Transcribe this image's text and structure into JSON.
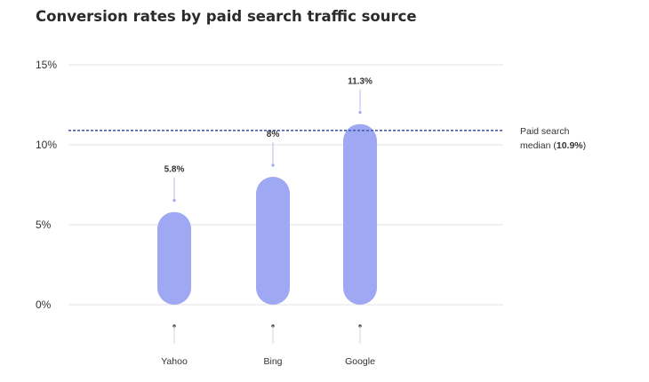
{
  "chart_data": {
    "type": "bar",
    "title": "Conversion rates by paid search traffic source",
    "categories": [
      "Yahoo",
      "Bing",
      "Google"
    ],
    "values": [
      5.8,
      8,
      11.3
    ],
    "value_labels": [
      "5.8%",
      "8%",
      "11.3%"
    ],
    "yticks": [
      "0%",
      "5%",
      "10%",
      "15%"
    ],
    "ytick_values": [
      0,
      5,
      10,
      15
    ],
    "ylim": [
      0,
      15
    ],
    "grid": true,
    "xlabel": "",
    "ylabel": "",
    "reference_line": {
      "value": 10.9,
      "label_line1": "Paid search",
      "label_line2_prefix": "median (",
      "label_line2_value": "10.9%",
      "label_line2_suffix": ")"
    },
    "colors": {
      "bar": "#9fa8f2",
      "median_line": "#4a5bb0",
      "grid": "#e3e3e3",
      "marker": "#4a4a4a"
    }
  }
}
